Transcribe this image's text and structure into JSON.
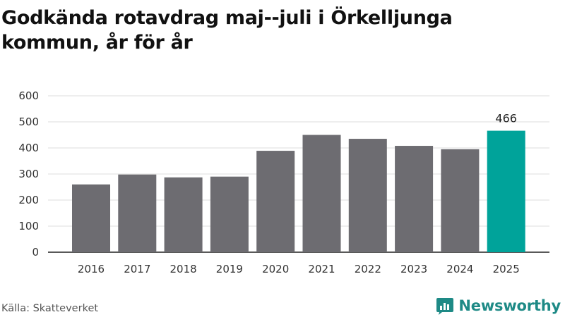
{
  "title": "Godkända rotavdrag maj--juli i Örkelljunga kommun, år för år",
  "source": "Källa: Skatteverket",
  "brand": {
    "name": "Newsworthy",
    "color": "#1e8a86",
    "icon": "chart-bubble-icon"
  },
  "colors": {
    "bar": "#6d6c71",
    "highlight": "#00a39a",
    "grid": "#dcdcdc",
    "axis": "#222222"
  },
  "chart_data": {
    "type": "bar",
    "categories": [
      "2016",
      "2017",
      "2018",
      "2019",
      "2020",
      "2021",
      "2022",
      "2023",
      "2024",
      "2025"
    ],
    "values": [
      260,
      298,
      287,
      290,
      389,
      450,
      435,
      408,
      395,
      466
    ],
    "highlight_index": 9,
    "data_labels": [
      {
        "index": 9,
        "text": "466"
      }
    ],
    "ylim": [
      0,
      600
    ],
    "yticks": [
      0,
      100,
      200,
      300,
      400,
      500,
      600
    ],
    "grid": true,
    "legend": "none",
    "xlabel": "",
    "ylabel": ""
  }
}
